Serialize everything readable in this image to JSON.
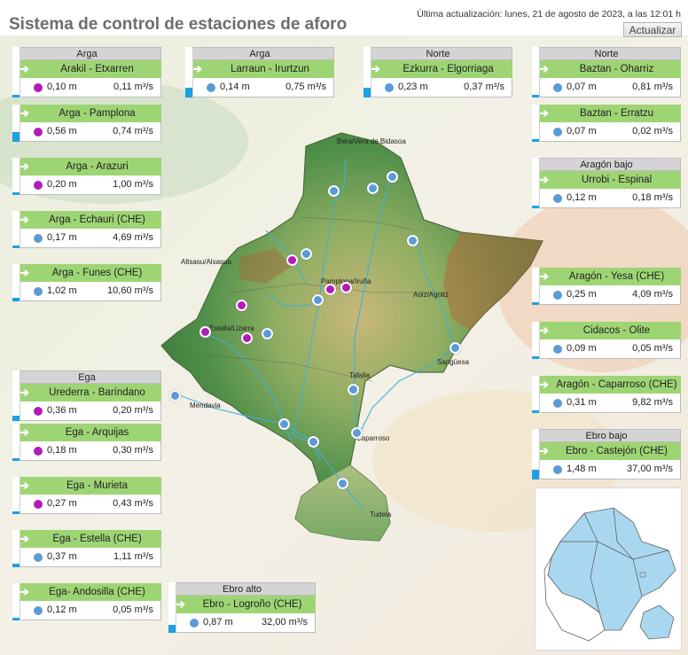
{
  "header": {
    "title": "Sistema de control de estaciones de aforo",
    "updated": "Última actualización: lunes, 21 de agosto de 2023, a las 12:01 h",
    "refresh_label": "Actualizar"
  },
  "colors": {
    "river_bar": "#9ed574",
    "normal": "#5b9bd5",
    "alert": "#b41ab8",
    "level_fill": "#1da0e4"
  },
  "stations": [
    {
      "id": "arakil",
      "group": "Arga",
      "river": "Arakil - Etxarren",
      "height": "0,10 m",
      "flow": "0,11 m³/s",
      "status": "alert",
      "level": 0.05,
      "arrow": "➔"
    },
    {
      "id": "larraun",
      "group": "Arga",
      "river": "Larraun - Irurtzun",
      "height": "0,14 m",
      "flow": "0,75 m³/s",
      "status": "normal",
      "level": 0.2,
      "arrow": "➔"
    },
    {
      "id": "ezkurra",
      "group": "Norte",
      "river": "Ezkurra - Elgorriaga",
      "height": "0,23 m",
      "flow": "0,37 m³/s",
      "status": "normal",
      "level": 0.2,
      "arrow": "➔"
    },
    {
      "id": "baztan-oharriz",
      "group": "Norte",
      "river": "Baztan - Oharriz",
      "height": "0,07 m",
      "flow": "0,81 m³/s",
      "status": "normal",
      "level": 0.05,
      "arrow": "➔"
    },
    {
      "id": "arga-pamplona",
      "group": "",
      "river": "Arga - Pamplona",
      "height": "0,56 m",
      "flow": "0,74 m³/s",
      "status": "alert",
      "level": 0.25,
      "arrow": "➔"
    },
    {
      "id": "baztan-erratzu",
      "group": "",
      "river": "Baztan - Erratzu",
      "height": "0,07 m",
      "flow": "0,02 m³/s",
      "status": "normal",
      "level": 0.05,
      "arrow": "➔"
    },
    {
      "id": "arga-arazuri",
      "group": "",
      "river": "Arga - Arazuri",
      "height": "0,20 m",
      "flow": "1,00 m³/s",
      "status": "alert",
      "level": 0.05,
      "arrow": "➔"
    },
    {
      "id": "urrobi",
      "group": "Aragón bajo",
      "river": "Urrobi - Espinal",
      "height": "0,12 m",
      "flow": "0,18 m³/s",
      "status": "normal",
      "level": 0.05,
      "arrow": "➔"
    },
    {
      "id": "arga-echauri",
      "group": "",
      "river": "Arga - Echauri (CHE)",
      "height": "0,17 m",
      "flow": "4,69 m³/s",
      "status": "normal",
      "level": 0.05,
      "arrow": "➔"
    },
    {
      "id": "arga-funes",
      "group": "",
      "river": "Arga - Funes (CHE)",
      "height": "1,02 m",
      "flow": "10,60 m³/s",
      "status": "normal",
      "level": 0.1,
      "arrow": "➔"
    },
    {
      "id": "aragon-yesa",
      "group": "",
      "river": "Aragón - Yesa (CHE)",
      "height": "0,25 m",
      "flow": "4,09 m³/s",
      "status": "normal",
      "level": 0.05,
      "arrow": "➔"
    },
    {
      "id": "cidacos",
      "group": "",
      "river": "Cidacos - Olite",
      "height": "0,09 m",
      "flow": "0,05 m³/s",
      "status": "normal",
      "level": 0.05,
      "arrow": "➔"
    },
    {
      "id": "urederra",
      "group": "Ega",
      "river": "Urederra - Baríndano",
      "height": "0,36 m",
      "flow": "0,20 m³/s",
      "status": "alert",
      "level": 0.1,
      "arrow": "➔"
    },
    {
      "id": "aragon-caparroso",
      "group": "",
      "river": "Aragón - Caparroso (CHE)",
      "height": "0,31 m",
      "flow": "9,82 m³/s",
      "status": "normal",
      "level": 0.05,
      "arrow": "➔"
    },
    {
      "id": "ega-arquijas",
      "group": "",
      "river": "Ega - Arquijas",
      "height": "0,18 m",
      "flow": "0,30 m³/s",
      "status": "alert",
      "level": 0.05,
      "arrow": "➔"
    },
    {
      "id": "ebro-castejon",
      "group": "Ebro bajo",
      "river": "Ebro - Castejón (CHE)",
      "height": "1,48 m",
      "flow": "37,00 m³/s",
      "status": "normal",
      "level": 0.2,
      "arrow": "➔"
    },
    {
      "id": "ega-murieta",
      "group": "",
      "river": "Ega - Murieta",
      "height": "0,27 m",
      "flow": "0,43 m³/s",
      "status": "alert",
      "level": 0.05,
      "arrow": "➔"
    },
    {
      "id": "ega-estella",
      "group": "",
      "river": "Ega - Estella (CHE)",
      "height": "0,37 m",
      "flow": "1,11 m³/s",
      "status": "normal",
      "level": 0.1,
      "arrow": "➔"
    },
    {
      "id": "ega-andosilla",
      "group": "",
      "river": "Ega- Andosilla (CHE)",
      "height": "0,12 m",
      "flow": "0,05 m³/s",
      "status": "normal",
      "level": 0.05,
      "arrow": "➔"
    },
    {
      "id": "ebro-logrono",
      "group": "Ebro alto",
      "river": "Ebro - Logroño (CHE)",
      "height": "0,87 m",
      "flow": "32,00 m³/s",
      "status": "normal",
      "level": 0.15,
      "arrow": "➔"
    }
  ],
  "map_labels": {
    "bera": "Bera/Vera de Bidasoa",
    "altsasu": "Altsasu/Alsasua",
    "pamplona": "Pamplona/Iruña",
    "aoiz": "Aoiz/Agoitz",
    "estella": "Estella/Lizarra",
    "sanguesa": "Sangüesa",
    "tafalla": "Tafalla",
    "mendavia": "Mendavia",
    "caparroso": "Caparroso",
    "tudela": "Tudela"
  }
}
